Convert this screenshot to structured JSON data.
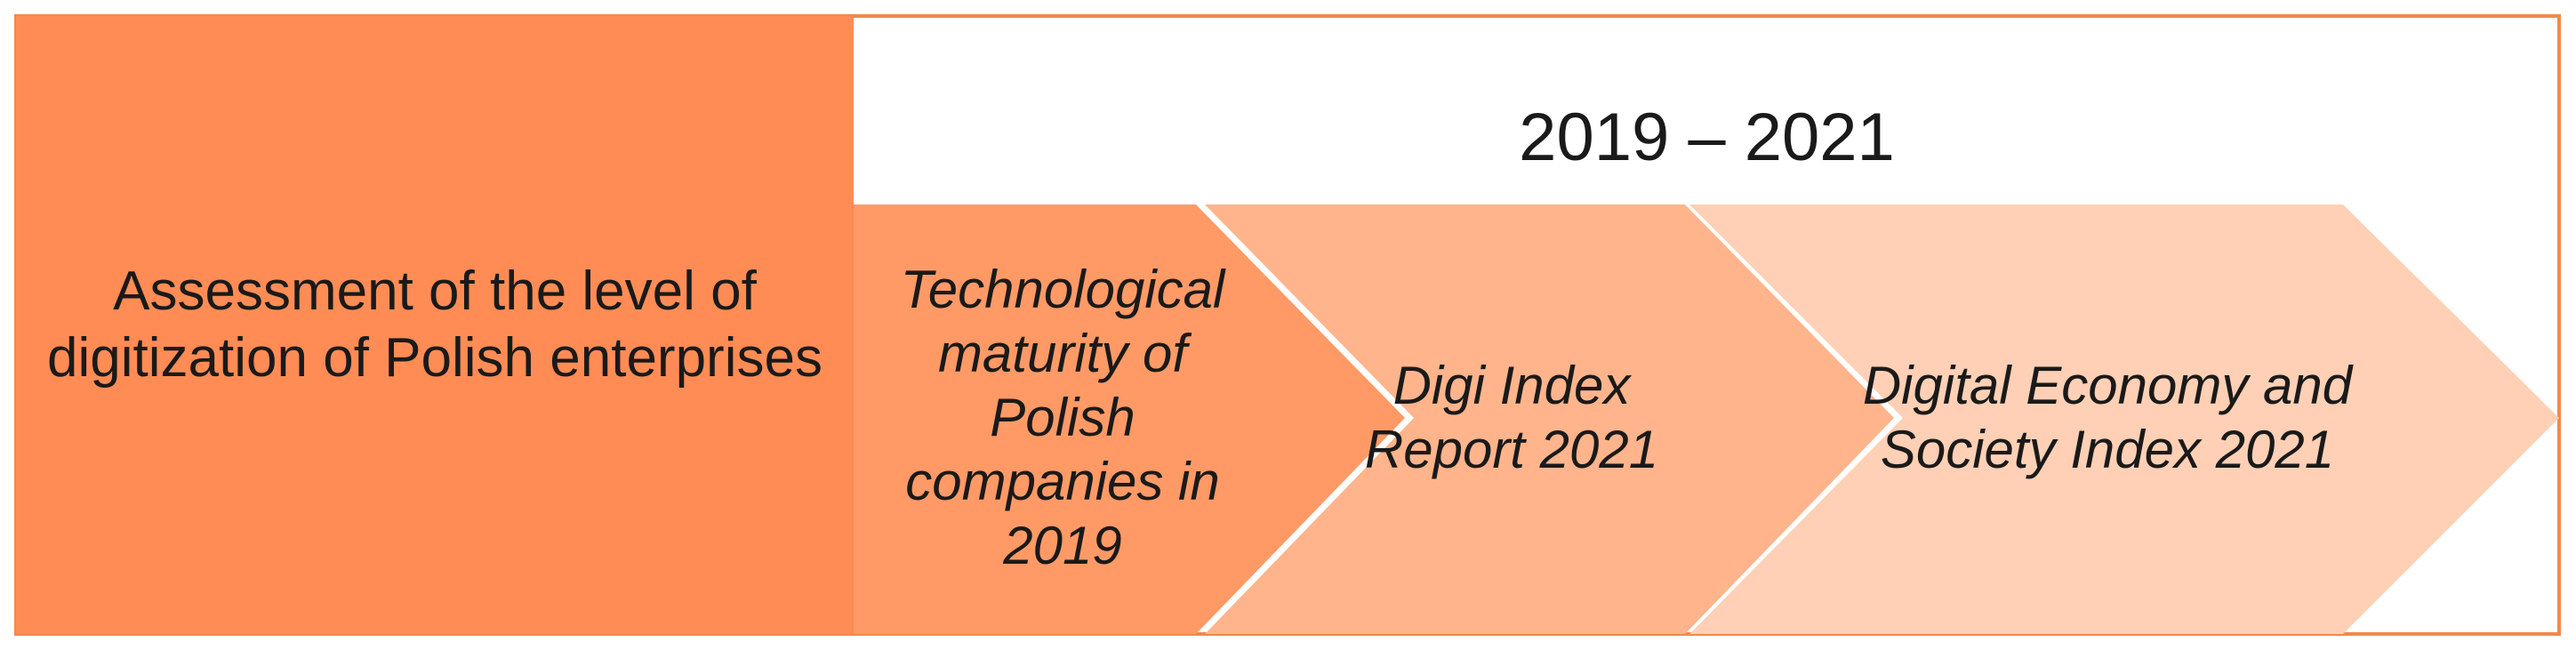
{
  "left_block": {
    "label": "Assessment of the level of digitization of Polish enterprises"
  },
  "period": {
    "label": "2019 – 2021"
  },
  "steps": [
    {
      "label": "Technological maturity of Polish companies in 2019"
    },
    {
      "label": "Digi Index Report 2021"
    },
    {
      "label": "Digital Economy and Society Index 2021"
    }
  ],
  "colors": {
    "frame": "#F08A4B",
    "left_block": "#FF8C55",
    "step_1": "#FF9A66",
    "step_2": "#FFB48C",
    "step_3": "#FFD0B5",
    "text": "#1a1a1a",
    "background": "#ffffff"
  }
}
